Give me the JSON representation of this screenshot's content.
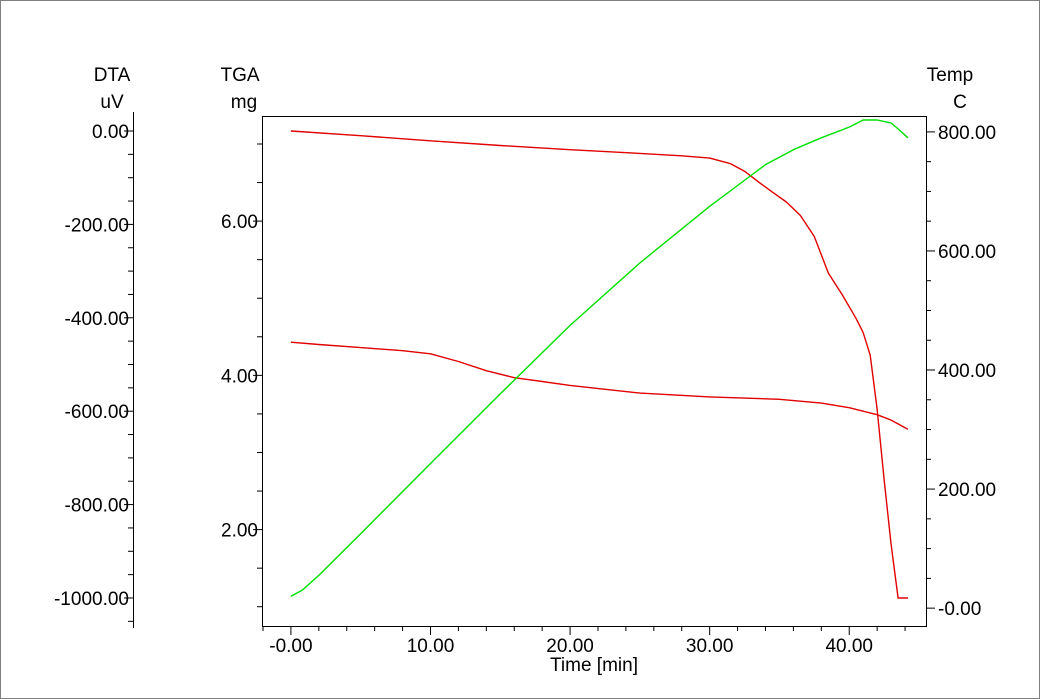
{
  "chart_data": {
    "type": "line",
    "title": "",
    "xlabel": "Time  [min]",
    "xlim": [
      -2,
      45.5
    ],
    "x_ticks": [
      {
        "value": 0,
        "label": "-0.00"
      },
      {
        "value": 10,
        "label": "10.00"
      },
      {
        "value": 20,
        "label": "20.00"
      },
      {
        "value": 30,
        "label": "30.00"
      },
      {
        "value": 40,
        "label": "40.00"
      }
    ],
    "axes": {
      "dta": {
        "label": "DTA",
        "unit": "uV",
        "position": "far-left",
        "range": [
          -1060,
          30
        ],
        "ticks": [
          {
            "value": 0,
            "label": "0.00"
          },
          {
            "value": -200,
            "label": "-200.00"
          },
          {
            "value": -400,
            "label": "-400.00"
          },
          {
            "value": -600,
            "label": "-600.00"
          },
          {
            "value": -800,
            "label": "-800.00"
          },
          {
            "value": -1000,
            "label": "-1000.00"
          }
        ]
      },
      "tga": {
        "label": "TGA",
        "unit": "mg",
        "position": "left",
        "range": [
          0.75,
          7.35
        ],
        "ticks": [
          {
            "value": 2,
            "label": "2.00"
          },
          {
            "value": 4,
            "label": "4.00"
          },
          {
            "value": 6,
            "label": "6.00"
          }
        ]
      },
      "temp": {
        "label": "Temp",
        "unit": "C",
        "position": "right",
        "range": [
          -30,
          825
        ],
        "ticks": [
          {
            "value": 0,
            "label": "-0.00"
          },
          {
            "value": 200,
            "label": "200.00"
          },
          {
            "value": 400,
            "label": "400.00"
          },
          {
            "value": 600,
            "label": "600.00"
          },
          {
            "value": 800,
            "label": "800.00"
          }
        ]
      }
    },
    "series": [
      {
        "axis": "dta",
        "color": "#e00000",
        "points": [
          [
            0,
            0
          ],
          [
            5,
            -10
          ],
          [
            10,
            -21
          ],
          [
            15,
            -31
          ],
          [
            20,
            -40
          ],
          [
            25,
            -48
          ],
          [
            28,
            -53
          ],
          [
            30,
            -58
          ],
          [
            31.5,
            -70
          ],
          [
            32.5,
            -86
          ],
          [
            33.5,
            -109
          ],
          [
            34.5,
            -131
          ],
          [
            35.5,
            -152
          ],
          [
            36.5,
            -181
          ],
          [
            37.5,
            -226
          ],
          [
            38.5,
            -304
          ],
          [
            39.5,
            -351
          ],
          [
            40.5,
            -402
          ],
          [
            41,
            -432
          ],
          [
            41.5,
            -480
          ],
          [
            42,
            -595
          ],
          [
            42.5,
            -746
          ],
          [
            43,
            -885
          ],
          [
            43.5,
            -1000
          ],
          [
            44.2,
            -1000
          ]
        ]
      },
      {
        "axis": "tga",
        "color": "#e00000",
        "points": [
          [
            0,
            4.43
          ],
          [
            2,
            4.4
          ],
          [
            5,
            4.36
          ],
          [
            8,
            4.32
          ],
          [
            10,
            4.28
          ],
          [
            12,
            4.18
          ],
          [
            14,
            4.06
          ],
          [
            16,
            3.97
          ],
          [
            18,
            3.92
          ],
          [
            20,
            3.87
          ],
          [
            25,
            3.77
          ],
          [
            30,
            3.72
          ],
          [
            35,
            3.69
          ],
          [
            38,
            3.64
          ],
          [
            40,
            3.58
          ],
          [
            42,
            3.49
          ],
          [
            43,
            3.42
          ],
          [
            44.2,
            3.3
          ]
        ]
      },
      {
        "axis": "temp",
        "color": "#00e000",
        "points": [
          [
            0,
            20
          ],
          [
            0.8,
            30
          ],
          [
            2,
            55
          ],
          [
            5,
            125
          ],
          [
            10,
            243
          ],
          [
            15,
            360
          ],
          [
            20,
            475
          ],
          [
            25,
            580
          ],
          [
            30,
            675
          ],
          [
            32,
            710
          ],
          [
            34,
            745
          ],
          [
            36,
            770
          ],
          [
            38,
            790
          ],
          [
            40,
            808
          ],
          [
            41,
            820
          ],
          [
            42,
            820
          ],
          [
            43,
            815
          ],
          [
            43.5,
            805
          ],
          [
            44.2,
            790
          ]
        ]
      }
    ]
  }
}
